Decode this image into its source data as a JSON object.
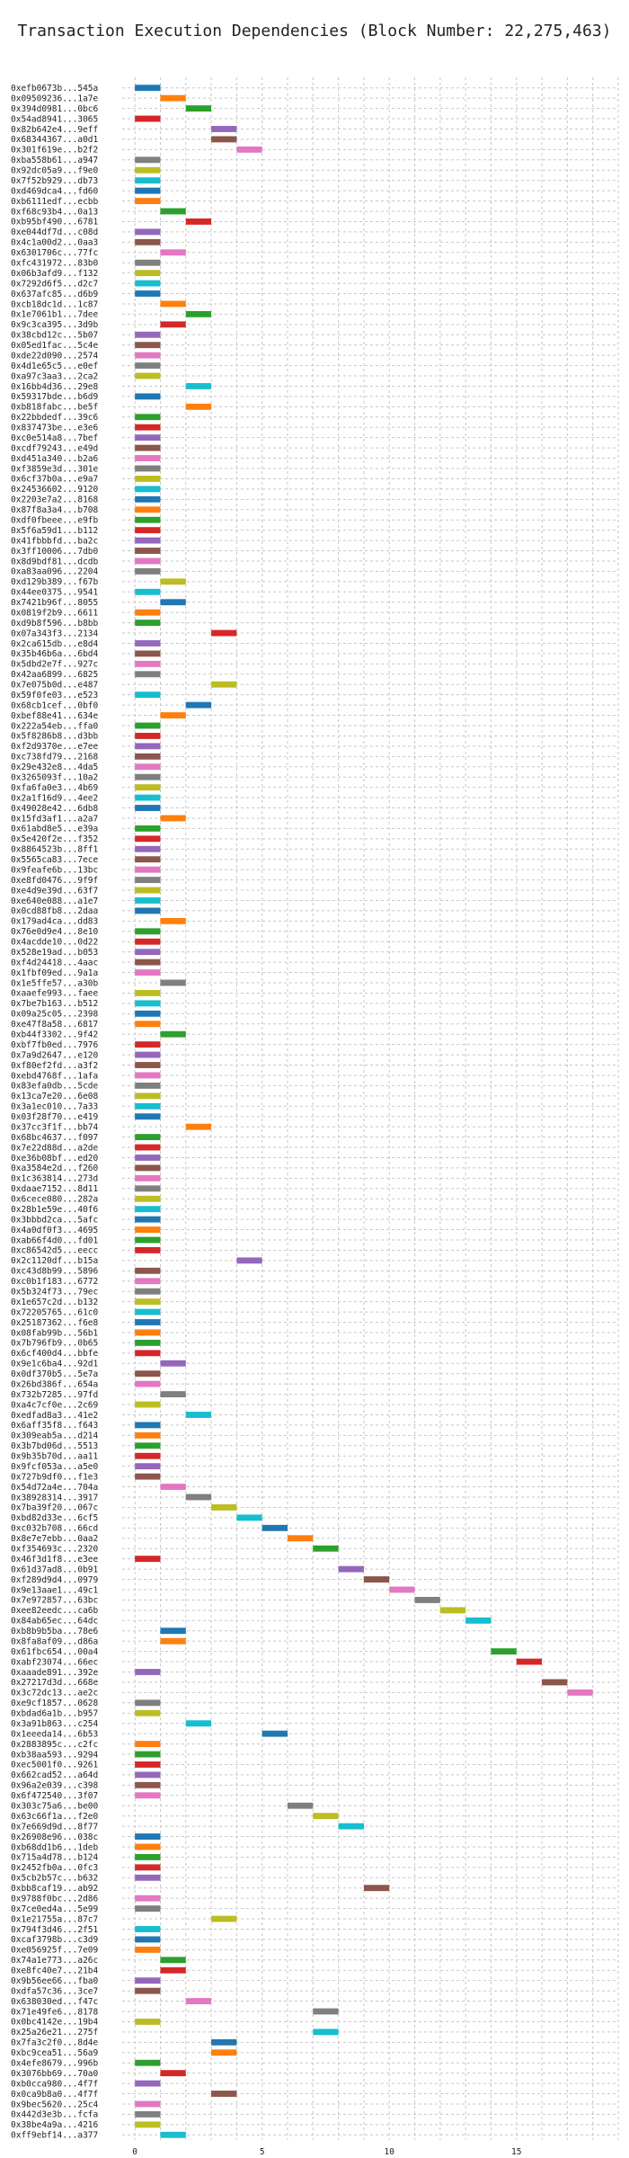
{
  "chart_data": {
    "type": "gantt",
    "title": "Transaction Execution Dependencies (Block Number: 22,275,463)",
    "xlabel": "",
    "ylabel": "",
    "xlim": [
      -0.5,
      19
    ],
    "xticks": [
      0,
      5,
      10,
      15
    ],
    "grid": true,
    "bar_duration": 1,
    "palette": [
      "#1f77b4",
      "#ff7f0e",
      "#2ca02c",
      "#d62728",
      "#9467bd",
      "#8c564b",
      "#e377c2",
      "#7f7f7f",
      "#bcbd22",
      "#17becf"
    ],
    "transactions": [
      {
        "tx": "0xefb0673b...545a",
        "start": 0,
        "color_index": 0
      },
      {
        "tx": "0x09509236...1a7e",
        "start": 1,
        "color_index": 1
      },
      {
        "tx": "0x394d0981...0bc6",
        "start": 2,
        "color_index": 2
      },
      {
        "tx": "0x54ad8941...3065",
        "start": 0,
        "color_index": 3
      },
      {
        "tx": "0x82b642e4...9eff",
        "start": 3,
        "color_index": 4
      },
      {
        "tx": "0x68344367...a0d1",
        "start": 3,
        "color_index": 5
      },
      {
        "tx": "0x301f619e...b2f2",
        "start": 4,
        "color_index": 6
      },
      {
        "tx": "0xba558b61...a947",
        "start": 0,
        "color_index": 7
      },
      {
        "tx": "0x92dc05a9...f9e0",
        "start": 0,
        "color_index": 8
      },
      {
        "tx": "0x7f52b929...db73",
        "start": 0,
        "color_index": 9
      },
      {
        "tx": "0xd469dca4...fd60",
        "start": 0,
        "color_index": 0
      },
      {
        "tx": "0xb6111edf...ecbb",
        "start": 0,
        "color_index": 1
      },
      {
        "tx": "0xf68c93b4...0a13",
        "start": 1,
        "color_index": 2
      },
      {
        "tx": "0xb95bf490...6781",
        "start": 2,
        "color_index": 3
      },
      {
        "tx": "0xe044df7d...c08d",
        "start": 0,
        "color_index": 4
      },
      {
        "tx": "0x4c1a00d2...0aa3",
        "start": 0,
        "color_index": 5
      },
      {
        "tx": "0x6301706c...77fc",
        "start": 1,
        "color_index": 6
      },
      {
        "tx": "0xfc431972...83b0",
        "start": 0,
        "color_index": 7
      },
      {
        "tx": "0x06b3afd9...f132",
        "start": 0,
        "color_index": 8
      },
      {
        "tx": "0x7292d6f5...d2c7",
        "start": 0,
        "color_index": 9
      },
      {
        "tx": "0x637afc85...d6b9",
        "start": 0,
        "color_index": 0
      },
      {
        "tx": "0xcb18dc1d...1c87",
        "start": 1,
        "color_index": 1
      },
      {
        "tx": "0x1e7061b1...7dee",
        "start": 2,
        "color_index": 2
      },
      {
        "tx": "0x9c3ca395...3d9b",
        "start": 1,
        "color_index": 3
      },
      {
        "tx": "0x38cbd12c...5b07",
        "start": 0,
        "color_index": 4
      },
      {
        "tx": "0x05ed1fac...5c4e",
        "start": 0,
        "color_index": 5
      },
      {
        "tx": "0xde22d090...2574",
        "start": 0,
        "color_index": 6
      },
      {
        "tx": "0x4d1e65c5...e0ef",
        "start": 0,
        "color_index": 7
      },
      {
        "tx": "0xa97c3aa3...2ca2",
        "start": 0,
        "color_index": 8
      },
      {
        "tx": "0x16bb4d36...29e8",
        "start": 2,
        "color_index": 9
      },
      {
        "tx": "0x59317bde...b6d9",
        "start": 0,
        "color_index": 0
      },
      {
        "tx": "0xb818fabc...be5f",
        "start": 2,
        "color_index": 1
      },
      {
        "tx": "0x22bbdedf...39c6",
        "start": 0,
        "color_index": 2
      },
      {
        "tx": "0x837473be...e3e6",
        "start": 0,
        "color_index": 3
      },
      {
        "tx": "0xc0e514a8...7bef",
        "start": 0,
        "color_index": 4
      },
      {
        "tx": "0xcdf79243...e49d",
        "start": 0,
        "color_index": 5
      },
      {
        "tx": "0xd451a340...b2a6",
        "start": 0,
        "color_index": 6
      },
      {
        "tx": "0xf3859e3d...301e",
        "start": 0,
        "color_index": 7
      },
      {
        "tx": "0x6cf37b0a...e9a7",
        "start": 0,
        "color_index": 8
      },
      {
        "tx": "0x24536602...9120",
        "start": 0,
        "color_index": 9
      },
      {
        "tx": "0x2203e7a2...8168",
        "start": 0,
        "color_index": 0
      },
      {
        "tx": "0x87f8a3a4...b708",
        "start": 0,
        "color_index": 1
      },
      {
        "tx": "0xdf0fbeee...e9fb",
        "start": 0,
        "color_index": 2
      },
      {
        "tx": "0x5f6a59d1...b112",
        "start": 0,
        "color_index": 3
      },
      {
        "tx": "0x41fbbbfd...ba2c",
        "start": 0,
        "color_index": 4
      },
      {
        "tx": "0x3ff10006...7db0",
        "start": 0,
        "color_index": 5
      },
      {
        "tx": "0x8d9bdf81...dcdb",
        "start": 0,
        "color_index": 6
      },
      {
        "tx": "0xa83aa096...2204",
        "start": 0,
        "color_index": 7
      },
      {
        "tx": "0xd129b389...f67b",
        "start": 1,
        "color_index": 8
      },
      {
        "tx": "0x44ee0375...9541",
        "start": 0,
        "color_index": 9
      },
      {
        "tx": "0x7421b96f...8055",
        "start": 1,
        "color_index": 0
      },
      {
        "tx": "0x0819f2b9...6611",
        "start": 0,
        "color_index": 1
      },
      {
        "tx": "0xd9b8f596...b8bb",
        "start": 0,
        "color_index": 2
      },
      {
        "tx": "0x07a343f3...2134",
        "start": 3,
        "color_index": 3
      },
      {
        "tx": "0x2ca615db...e8d4",
        "start": 0,
        "color_index": 4
      },
      {
        "tx": "0x35b46b6a...6bd4",
        "start": 0,
        "color_index": 5
      },
      {
        "tx": "0x5dbd2e7f...927c",
        "start": 0,
        "color_index": 6
      },
      {
        "tx": "0x42aa6899...6825",
        "start": 0,
        "color_index": 7
      },
      {
        "tx": "0x7e075b0d...e487",
        "start": 3,
        "color_index": 8
      },
      {
        "tx": "0x59f0fe03...e523",
        "start": 0,
        "color_index": 9
      },
      {
        "tx": "0x68cb1cef...0bf0",
        "start": 2,
        "color_index": 0
      },
      {
        "tx": "0xbef88e41...634e",
        "start": 1,
        "color_index": 1
      },
      {
        "tx": "0x222a54eb...ffa0",
        "start": 0,
        "color_index": 2
      },
      {
        "tx": "0x5f8286b8...d3bb",
        "start": 0,
        "color_index": 3
      },
      {
        "tx": "0xf2d9370e...e7ee",
        "start": 0,
        "color_index": 4
      },
      {
        "tx": "0xc738fd79...2168",
        "start": 0,
        "color_index": 5
      },
      {
        "tx": "0x29e432e8...4da5",
        "start": 0,
        "color_index": 6
      },
      {
        "tx": "0x3265093f...10a2",
        "start": 0,
        "color_index": 7
      },
      {
        "tx": "0xfa6fa0e3...4b69",
        "start": 0,
        "color_index": 8
      },
      {
        "tx": "0x2a1f16d9...4ee2",
        "start": 0,
        "color_index": 9
      },
      {
        "tx": "0x49028e42...6db8",
        "start": 0,
        "color_index": 0
      },
      {
        "tx": "0x15fd3af1...a2a7",
        "start": 1,
        "color_index": 1
      },
      {
        "tx": "0x61abd8e5...e39a",
        "start": 0,
        "color_index": 2
      },
      {
        "tx": "0x5e420f2e...f352",
        "start": 0,
        "color_index": 3
      },
      {
        "tx": "0x8864523b...8ff1",
        "start": 0,
        "color_index": 4
      },
      {
        "tx": "0x5565ca83...7ece",
        "start": 0,
        "color_index": 5
      },
      {
        "tx": "0x9feafe6b...13bc",
        "start": 0,
        "color_index": 6
      },
      {
        "tx": "0xe8fd0476...9f9f",
        "start": 0,
        "color_index": 7
      },
      {
        "tx": "0xe4d9e39d...63f7",
        "start": 0,
        "color_index": 8
      },
      {
        "tx": "0xe640e088...a1e7",
        "start": 0,
        "color_index": 9
      },
      {
        "tx": "0x0cd88fb8...2daa",
        "start": 0,
        "color_index": 0
      },
      {
        "tx": "0x179ad4ca...dd83",
        "start": 1,
        "color_index": 1
      },
      {
        "tx": "0x76e0d9e4...8e10",
        "start": 0,
        "color_index": 2
      },
      {
        "tx": "0x4acdde10...0d22",
        "start": 0,
        "color_index": 3
      },
      {
        "tx": "0x528e19ad...b053",
        "start": 0,
        "color_index": 4
      },
      {
        "tx": "0xf4d24418...4aac",
        "start": 0,
        "color_index": 5
      },
      {
        "tx": "0x1fbf09ed...9a1a",
        "start": 0,
        "color_index": 6
      },
      {
        "tx": "0x1e5ffe57...a30b",
        "start": 1,
        "color_index": 7
      },
      {
        "tx": "0xaaefe993...faee",
        "start": 0,
        "color_index": 8
      },
      {
        "tx": "0x7be7b163...b512",
        "start": 0,
        "color_index": 9
      },
      {
        "tx": "0x09a25c05...2398",
        "start": 0,
        "color_index": 0
      },
      {
        "tx": "0xe47f8a58...6817",
        "start": 0,
        "color_index": 1
      },
      {
        "tx": "0xb44f3302...9f42",
        "start": 1,
        "color_index": 2
      },
      {
        "tx": "0xbf7fb0ed...7976",
        "start": 0,
        "color_index": 3
      },
      {
        "tx": "0x7a9d2647...e120",
        "start": 0,
        "color_index": 4
      },
      {
        "tx": "0xf80ef2fd...a3f2",
        "start": 0,
        "color_index": 5
      },
      {
        "tx": "0xebd4768f...1afa",
        "start": 0,
        "color_index": 6
      },
      {
        "tx": "0x83efa0db...5cde",
        "start": 0,
        "color_index": 7
      },
      {
        "tx": "0x13ca7e20...6e08",
        "start": 0,
        "color_index": 8
      },
      {
        "tx": "0x3a1ec010...7a33",
        "start": 0,
        "color_index": 9
      },
      {
        "tx": "0x03f28f70...e419",
        "start": 0,
        "color_index": 0
      },
      {
        "tx": "0x37cc3f1f...bb74",
        "start": 2,
        "color_index": 1
      },
      {
        "tx": "0x68bc4637...f097",
        "start": 0,
        "color_index": 2
      },
      {
        "tx": "0x7e22d88d...a2de",
        "start": 0,
        "color_index": 3
      },
      {
        "tx": "0xe36b08bf...ed20",
        "start": 0,
        "color_index": 4
      },
      {
        "tx": "0xa3584e2d...f260",
        "start": 0,
        "color_index": 5
      },
      {
        "tx": "0x1c363814...273d",
        "start": 0,
        "color_index": 6
      },
      {
        "tx": "0xdaae7152...8d11",
        "start": 0,
        "color_index": 7
      },
      {
        "tx": "0x6cece080...282a",
        "start": 0,
        "color_index": 8
      },
      {
        "tx": "0x28b1e59e...40f6",
        "start": 0,
        "color_index": 9
      },
      {
        "tx": "0x3bbbd2ca...5afc",
        "start": 0,
        "color_index": 0
      },
      {
        "tx": "0x4a0df0f3...4695",
        "start": 0,
        "color_index": 1
      },
      {
        "tx": "0xab66f4d0...fd01",
        "start": 0,
        "color_index": 2
      },
      {
        "tx": "0xc86542d5...eecc",
        "start": 0,
        "color_index": 3
      },
      {
        "tx": "0x2c1120df...b15a",
        "start": 4,
        "color_index": 4
      },
      {
        "tx": "0xc43d8b99...5896",
        "start": 0,
        "color_index": 5
      },
      {
        "tx": "0xc0b1f183...6772",
        "start": 0,
        "color_index": 6
      },
      {
        "tx": "0x5b324f73...79ec",
        "start": 0,
        "color_index": 7
      },
      {
        "tx": "0x1e657c2d...b132",
        "start": 0,
        "color_index": 8
      },
      {
        "tx": "0x72205765...61c0",
        "start": 0,
        "color_index": 9
      },
      {
        "tx": "0x25187362...f6e8",
        "start": 0,
        "color_index": 0
      },
      {
        "tx": "0x08fab99b...56b1",
        "start": 0,
        "color_index": 1
      },
      {
        "tx": "0x7b796fb9...0b65",
        "start": 0,
        "color_index": 2
      },
      {
        "tx": "0x6cf400d4...bbfe",
        "start": 0,
        "color_index": 3
      },
      {
        "tx": "0x9e1c6ba4...92d1",
        "start": 1,
        "color_index": 4
      },
      {
        "tx": "0x0df370b5...5e7a",
        "start": 0,
        "color_index": 5
      },
      {
        "tx": "0x26bd386f...654a",
        "start": 0,
        "color_index": 6
      },
      {
        "tx": "0x732b7285...97fd",
        "start": 1,
        "color_index": 7
      },
      {
        "tx": "0xa4c7cf0e...2c69",
        "start": 0,
        "color_index": 8
      },
      {
        "tx": "0xedfad8a3...41e2",
        "start": 2,
        "color_index": 9
      },
      {
        "tx": "0x6aff35f8...f643",
        "start": 0,
        "color_index": 0
      },
      {
        "tx": "0x309eab5a...d214",
        "start": 0,
        "color_index": 1
      },
      {
        "tx": "0x3b7bd06d...5513",
        "start": 0,
        "color_index": 2
      },
      {
        "tx": "0x9b35b70d...aa11",
        "start": 0,
        "color_index": 3
      },
      {
        "tx": "0x9fcf053a...a5e0",
        "start": 0,
        "color_index": 4
      },
      {
        "tx": "0x727b9df0...f1e3",
        "start": 0,
        "color_index": 5
      },
      {
        "tx": "0x54d72a4e...704a",
        "start": 1,
        "color_index": 6
      },
      {
        "tx": "0x38928314...3917",
        "start": 2,
        "color_index": 7
      },
      {
        "tx": "0x7ba39f20...067c",
        "start": 3,
        "color_index": 8
      },
      {
        "tx": "0xbd82d33e...6cf5",
        "start": 4,
        "color_index": 9
      },
      {
        "tx": "0xc032b708...66cd",
        "start": 5,
        "color_index": 0
      },
      {
        "tx": "0x8e7e7ebb...0aa2",
        "start": 6,
        "color_index": 1
      },
      {
        "tx": "0xf354693c...2320",
        "start": 7,
        "color_index": 2
      },
      {
        "tx": "0x46f3d1f8...e3ee",
        "start": 0,
        "color_index": 3
      },
      {
        "tx": "0x61d37ad8...0b91",
        "start": 8,
        "color_index": 4
      },
      {
        "tx": "0xf289d9d4...0979",
        "start": 9,
        "color_index": 5
      },
      {
        "tx": "0x9e13aae1...49c1",
        "start": 10,
        "color_index": 6
      },
      {
        "tx": "0x7e972857...63bc",
        "start": 11,
        "color_index": 7
      },
      {
        "tx": "0xee82eedc...ca6b",
        "start": 12,
        "color_index": 8
      },
      {
        "tx": "0x84ab65ec...64dc",
        "start": 13,
        "color_index": 9
      },
      {
        "tx": "0xb8b9b5ba...78e6",
        "start": 1,
        "color_index": 0
      },
      {
        "tx": "0x8fa8af09...d86a",
        "start": 1,
        "color_index": 1
      },
      {
        "tx": "0x61fbc654...00a4",
        "start": 14,
        "color_index": 2
      },
      {
        "tx": "0xabf23074...66ec",
        "start": 15,
        "color_index": 3
      },
      {
        "tx": "0xaaade891...392e",
        "start": 0,
        "color_index": 4
      },
      {
        "tx": "0x27217d3d...668e",
        "start": 16,
        "color_index": 5
      },
      {
        "tx": "0x3c72dc13...ae2c",
        "start": 17,
        "color_index": 6
      },
      {
        "tx": "0xe9cf1857...0628",
        "start": 0,
        "color_index": 7
      },
      {
        "tx": "0xbdad6a1b...b957",
        "start": 0,
        "color_index": 8
      },
      {
        "tx": "0x3a91b863...c254",
        "start": 2,
        "color_index": 9
      },
      {
        "tx": "0x1eeeda14...6b53",
        "start": 5,
        "color_index": 0
      },
      {
        "tx": "0x2883895c...c2fc",
        "start": 0,
        "color_index": 1
      },
      {
        "tx": "0xb38aa593...9294",
        "start": 0,
        "color_index": 2
      },
      {
        "tx": "0xec5001f0...9261",
        "start": 0,
        "color_index": 3
      },
      {
        "tx": "0x662cad52...a64d",
        "start": 0,
        "color_index": 4
      },
      {
        "tx": "0x96a2e039...c398",
        "start": 0,
        "color_index": 5
      },
      {
        "tx": "0x6f472540...3f07",
        "start": 0,
        "color_index": 6
      },
      {
        "tx": "0x303c75a6...be00",
        "start": 6,
        "color_index": 7
      },
      {
        "tx": "0x63c66f1a...f2e0",
        "start": 7,
        "color_index": 8
      },
      {
        "tx": "0x7e669d9d...8f77",
        "start": 8,
        "color_index": 9
      },
      {
        "tx": "0x26908e96...038c",
        "start": 0,
        "color_index": 0
      },
      {
        "tx": "0xb68dd1b6...1deb",
        "start": 0,
        "color_index": 1
      },
      {
        "tx": "0x715a4d78...b124",
        "start": 0,
        "color_index": 2
      },
      {
        "tx": "0x2452fb0a...0fc3",
        "start": 0,
        "color_index": 3
      },
      {
        "tx": "0x5cb2b57c...b632",
        "start": 0,
        "color_index": 4
      },
      {
        "tx": "0xbb8caf19...ab92",
        "start": 9,
        "color_index": 5
      },
      {
        "tx": "0x9788f0bc...2d86",
        "start": 0,
        "color_index": 6
      },
      {
        "tx": "0x7ce0ed4a...5e99",
        "start": 0,
        "color_index": 7
      },
      {
        "tx": "0x1e21755a...87c7",
        "start": 3,
        "color_index": 8
      },
      {
        "tx": "0x794f3d46...2f51",
        "start": 0,
        "color_index": 9
      },
      {
        "tx": "0xcaf3798b...c3d9",
        "start": 0,
        "color_index": 0
      },
      {
        "tx": "0xe056925f...7e09",
        "start": 0,
        "color_index": 1
      },
      {
        "tx": "0x74a1e773...a26c",
        "start": 1,
        "color_index": 2
      },
      {
        "tx": "0xe8fc40e7...21b4",
        "start": 1,
        "color_index": 3
      },
      {
        "tx": "0x9b56ee66...fba0",
        "start": 0,
        "color_index": 4
      },
      {
        "tx": "0xdfa57c36...3ce7",
        "start": 0,
        "color_index": 5
      },
      {
        "tx": "0x638030ed...f47c",
        "start": 2,
        "color_index": 6
      },
      {
        "tx": "0x71e49fe6...8178",
        "start": 7,
        "color_index": 7
      },
      {
        "tx": "0x0bc4142e...19b4",
        "start": 0,
        "color_index": 8
      },
      {
        "tx": "0x25a26e21...275f",
        "start": 7,
        "color_index": 9
      },
      {
        "tx": "0x7fa3c2f0...8d4e",
        "start": 3,
        "color_index": 0
      },
      {
        "tx": "0xbc9cea51...56a9",
        "start": 3,
        "color_index": 1
      },
      {
        "tx": "0x4efe8679...996b",
        "start": 0,
        "color_index": 2
      },
      {
        "tx": "0x3076bb69...70a0",
        "start": 1,
        "color_index": 3
      },
      {
        "tx": "0xb0cca980...4f7f",
        "start": 0,
        "color_index": 4
      },
      {
        "tx": "0x0ca9b8a0...4f7f",
        "start": 3,
        "color_index": 5
      },
      {
        "tx": "0x9bec5620...25c4",
        "start": 0,
        "color_index": 6
      },
      {
        "tx": "0x442d3e3b...fcfa",
        "start": 0,
        "color_index": 7
      },
      {
        "tx": "0x38be4a9a...4216",
        "start": 0,
        "color_index": 8
      },
      {
        "tx": "0xff9ebf14...a377",
        "start": 1,
        "color_index": 9
      }
    ]
  }
}
